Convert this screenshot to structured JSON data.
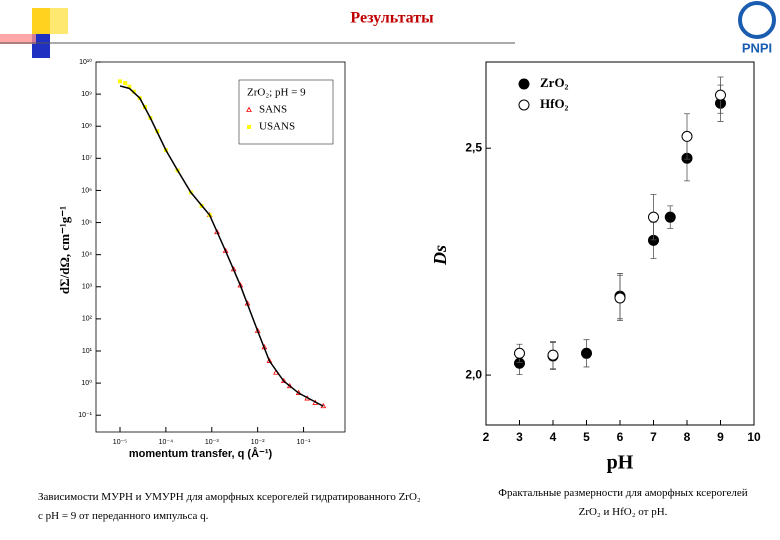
{
  "header": {
    "title": "Результаты",
    "logo": "PNPI"
  },
  "chart_data": [
    {
      "type": "scatter",
      "xscale": "log",
      "yscale": "log",
      "xlabel": "momentum transfer, q (Å⁻¹)",
      "ylabel": "dΣ/dΩ, cm⁻¹g⁻¹",
      "xlim": [
        3e-06,
        0.8
      ],
      "ylim": [
        0.03,
        10000000000.0
      ],
      "xticks": [
        {
          "value": 1e-05,
          "label": "10⁻⁵"
        },
        {
          "value": 0.0001,
          "label": "10⁻⁴"
        },
        {
          "value": 0.001,
          "label": "10⁻³"
        },
        {
          "value": 0.01,
          "label": "10⁻²"
        },
        {
          "value": 0.1,
          "label": "10⁻¹"
        }
      ],
      "yticks": [
        {
          "value": 0.1,
          "label": "10⁻¹"
        },
        {
          "value": 1,
          "label": "10⁰"
        },
        {
          "value": 10,
          "label": "10¹"
        },
        {
          "value": 100,
          "label": "10²"
        },
        {
          "value": 1000.0,
          "label": "10³"
        },
        {
          "value": 10000.0,
          "label": "10⁴"
        },
        {
          "value": 100000.0,
          "label": "10⁵"
        },
        {
          "value": 1000000.0,
          "label": "10⁶"
        },
        {
          "value": 10000000.0,
          "label": "10⁷"
        },
        {
          "value": 100000000.0,
          "label": "10⁸"
        },
        {
          "value": 1000000000.0,
          "label": "10⁹"
        },
        {
          "value": 10000000000.0,
          "label": "10¹⁰"
        }
      ],
      "legend_title": "ZrO₂; pH = 9",
      "legend_loc": "upper right",
      "series": [
        {
          "name": "SANS",
          "color": "#ff0000",
          "marker": "triangle",
          "x": [
            0.0009,
            0.0013,
            0.002,
            0.003,
            0.0042,
            0.006,
            0.01,
            0.014,
            0.018,
            0.025,
            0.037,
            0.05,
            0.078,
            0.12,
            0.18,
            0.27
          ],
          "values": [
            170000,
            50000,
            13000,
            3500,
            1100,
            300,
            42,
            13,
            4.9,
            2.1,
            1.15,
            0.8,
            0.49,
            0.33,
            0.24,
            0.19
          ]
        },
        {
          "name": "USANS",
          "color": "#ffff00",
          "marker": "square",
          "x": [
            1e-05,
            1.3e-05,
            1.6e-05,
            2e-05,
            2.7e-05,
            3.5e-05,
            4.6e-05,
            6.5e-05,
            0.0001,
            0.00018,
            0.00035,
            0.0006,
            0.0009
          ],
          "values": [
            2500000000,
            2200000000,
            1700000000,
            1200000000,
            750000000,
            400000000,
            180000000,
            70000000,
            18000000,
            4200000,
            870000,
            330000,
            170000
          ]
        }
      ],
      "fit": {
        "color": "#000000",
        "x": [
          1e-05,
          1.6e-05,
          2.7e-05,
          4.6e-05,
          0.0001,
          0.00018,
          0.00035,
          0.0009,
          0.002,
          0.0042,
          0.01,
          0.018,
          0.037,
          0.078,
          0.27
        ],
        "values": [
          1800000000,
          1500000000,
          750000000,
          180000000,
          18000000,
          4200000,
          870000,
          170000,
          13000,
          1100,
          42,
          4.9,
          1.15,
          0.49,
          0.19
        ]
      }
    },
    {
      "type": "errorbar",
      "xlabel": "pH",
      "ylabel": "Ds",
      "xlim": [
        2,
        10
      ],
      "ylim": [
        1.89,
        2.69
      ],
      "xticks": [
        2,
        3,
        4,
        5,
        6,
        7,
        8,
        9,
        10
      ],
      "yticks": [
        {
          "value": 2,
          "label": "2,0"
        },
        {
          "value": 2.5,
          "label": "2,5"
        }
      ],
      "legend_loc": "upper left",
      "series": [
        {
          "name": "ZrO₂",
          "color": "#000000",
          "marker": "filled",
          "x": [
            3,
            4,
            5,
            6,
            7,
            7.5,
            8,
            9
          ],
          "values": [
            2.026,
            2.042,
            2.048,
            2.174,
            2.297,
            2.348,
            2.478,
            2.599
          ],
          "errors": [
            0.025,
            0.03,
            0.03,
            0.05,
            0.04,
            0.025,
            0.05,
            0.04
          ]
        },
        {
          "name": "HfO₂",
          "color": "#000000",
          "marker": "open",
          "x": [
            3,
            4,
            6,
            7,
            8,
            9
          ],
          "values": [
            2.048,
            2.044,
            2.17,
            2.348,
            2.526,
            2.617
          ],
          "errors": [
            0.02,
            0.03,
            0.05,
            0.05,
            0.05,
            0.04
          ]
        }
      ]
    }
  ],
  "captions": [
    "Зависимости МУРН и УМУРН для аморфных ксерогелей гидратированного ZrO₂ с pH = 9 от переданного импульса q.",
    "Фрактальные размерности для аморфных ксерогелей ZrO₂ и HfO₂ от pH."
  ]
}
